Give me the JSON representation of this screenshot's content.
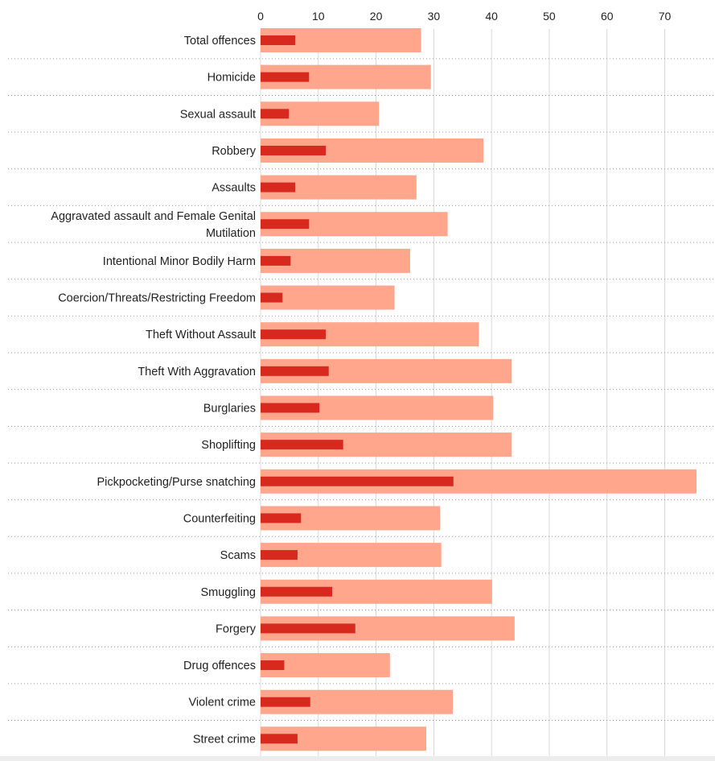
{
  "chart_data": {
    "type": "bar",
    "orientation": "horizontal",
    "title": "",
    "xlabel": "",
    "ylabel": "",
    "xlim": [
      0,
      75.5
    ],
    "x_ticks": [
      0,
      10,
      20,
      30,
      40,
      50,
      60,
      70
    ],
    "grid": "vertical",
    "legend": "none",
    "colors": {
      "wide": "#ffa68c",
      "narrow": "#d8291f",
      "grid": "#d8d8d8",
      "text": "#222222"
    },
    "categories": [
      "Total offences",
      "Homicide",
      "Sexual assault",
      "Robbery",
      "Assaults",
      "Aggravated assault and Female Genital Mutilation",
      "Intentional Minor Bodily Harm",
      "Coercion/Threats/Restricting Freedom",
      "Theft Without Assault",
      "Theft With Aggravation",
      "Burglaries",
      "Shoplifting",
      "Pickpocketing/Purse snatching",
      "Counterfeiting",
      "Scams",
      "Smuggling",
      "Forgery",
      "Drug offences",
      "Violent crime",
      "Street crime"
    ],
    "category_lines": [
      [
        "Total offences"
      ],
      [
        "Homicide"
      ],
      [
        "Sexual assault"
      ],
      [
        "Robbery"
      ],
      [
        "Assaults"
      ],
      [
        "Aggravated assault and Female Genital",
        "Mutilation"
      ],
      [
        "Intentional Minor Bodily Harm"
      ],
      [
        "Coercion/Threats/Restricting Freedom"
      ],
      [
        "Theft Without Assault"
      ],
      [
        "Theft With Aggravation"
      ],
      [
        "Burglaries"
      ],
      [
        "Shoplifting"
      ],
      [
        "Pickpocketing/Purse snatching"
      ],
      [
        "Counterfeiting"
      ],
      [
        "Scams"
      ],
      [
        "Smuggling"
      ],
      [
        "Forgery"
      ],
      [
        "Drug offences"
      ],
      [
        "Violent crime"
      ],
      [
        "Street crime"
      ]
    ],
    "series": [
      {
        "values": [
          27.8,
          29.5,
          20.5,
          38.6,
          27.0,
          32.4,
          25.9,
          23.2,
          37.8,
          43.5,
          40.3,
          43.5,
          75.5,
          31.1,
          31.3,
          40.1,
          44.0,
          22.4,
          33.3,
          28.7
        ]
      },
      {
        "values": [
          6.0,
          8.4,
          4.9,
          11.3,
          6.0,
          8.4,
          5.2,
          3.8,
          11.3,
          11.8,
          10.2,
          14.3,
          33.4,
          7.0,
          6.4,
          12.4,
          16.4,
          4.1,
          8.6,
          6.4
        ]
      }
    ]
  }
}
